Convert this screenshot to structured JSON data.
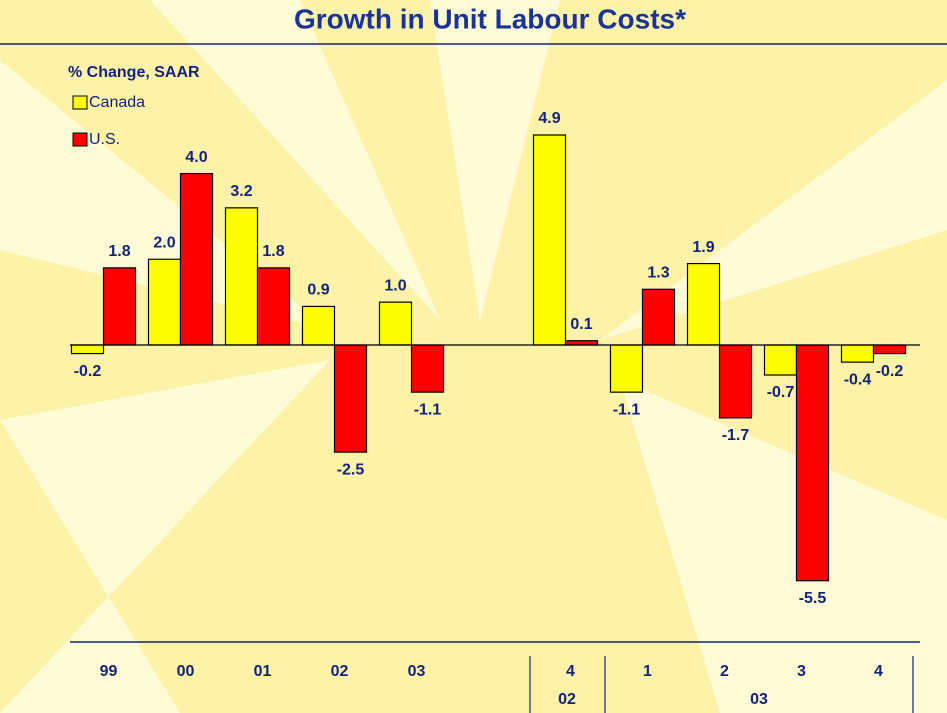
{
  "chart_data": {
    "type": "bar",
    "title": "Growth in Unit Labour Costs*",
    "y_label": "% Change, SAAR",
    "categories": [
      "99",
      "00",
      "01",
      "02",
      "03",
      null,
      "4",
      "1",
      "2",
      "3",
      "4"
    ],
    "x_groups": [
      "02",
      "03"
    ],
    "series": [
      {
        "name": "Canada",
        "color": "#ffff00",
        "values": [
          -0.2,
          2.0,
          3.2,
          0.9,
          1.0,
          null,
          4.9,
          -1.1,
          1.9,
          -0.7,
          -0.4
        ],
        "value_labels": [
          "-0.2",
          "2.0",
          "3.2",
          "0.9",
          "1.0",
          null,
          "4.9",
          "-1.1",
          "1.9",
          "-0.7",
          "-0.4"
        ]
      },
      {
        "name": "U.S.",
        "color": "#ff0000",
        "values": [
          1.8,
          4.0,
          1.8,
          -2.5,
          -1.1,
          null,
          0.1,
          1.3,
          -1.7,
          -5.5,
          -0.2
        ],
        "value_labels": [
          "1.8",
          "4.0",
          "1.8",
          "-2.5",
          "-1.1",
          null,
          "0.1",
          "1.3",
          "-1.7",
          "-5.5",
          "-0.2"
        ]
      }
    ],
    "ylim": [
      -7,
      7
    ],
    "legend": "top-left"
  }
}
